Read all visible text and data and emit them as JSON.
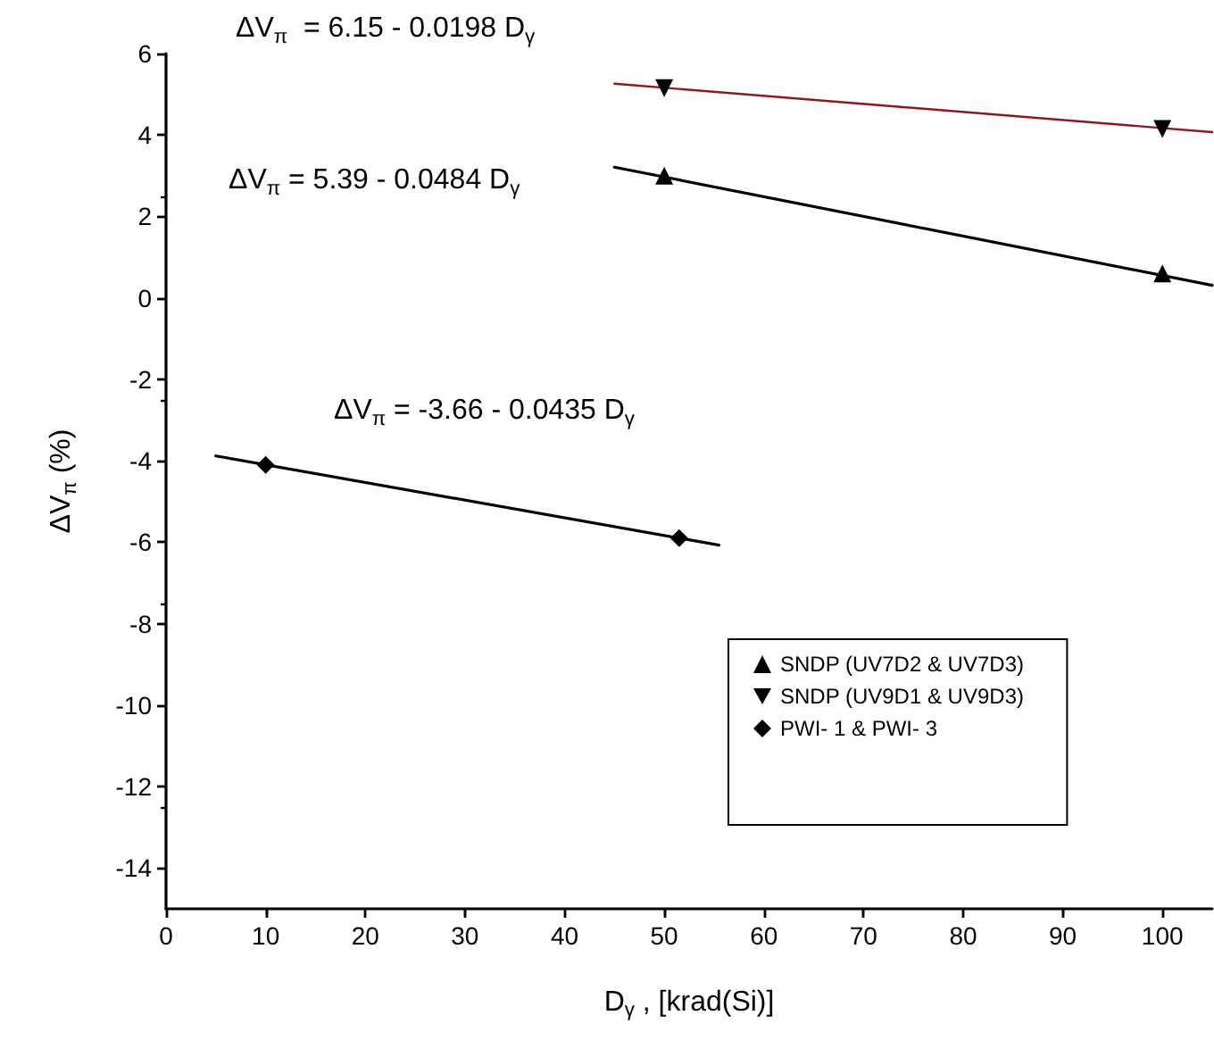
{
  "chart_data": {
    "type": "scatter",
    "xlabel": "D$_{γ}$ , [krad(Si)]",
    "ylabel": "ΔV$_{π}$ (%)",
    "annotations": [
      "ΔV$_{π}$  = 6.15 - 0.0198 D$_{γ}$",
      "ΔV$_{π}$ = 5.39 - 0.0484 D$_{γ}$",
      "ΔV$_{π}$ = -3.66 - 0.0435 D$_{γ}$"
    ],
    "xlim": [
      0,
      105
    ],
    "xticks": [
      0,
      10,
      20,
      30,
      40,
      50,
      60,
      70,
      80,
      90,
      100
    ],
    "ylim": [
      -15,
      6
    ],
    "yticks": [
      -14,
      -12,
      -10,
      -8,
      -6,
      -4,
      -2,
      0,
      2,
      4,
      6
    ],
    "grid": false,
    "legend": "bottom right",
    "series": [
      {
        "name": "SNDP (UV7D2 & UV7D3)",
        "marker": "triangle",
        "color": "#000000",
        "x": [
          50,
          100
        ],
        "values": [
          3.0,
          0.6
        ]
      },
      {
        "name": "SNDP (UV9D1 & UV9D3)",
        "marker": "triangle-down",
        "color": "#000000",
        "x": [
          50,
          100
        ],
        "values": [
          5.15,
          4.15
        ]
      },
      {
        "name": "PWI- 1 & PWI- 3",
        "marker": "diamond",
        "color": "#000000",
        "x": [
          10,
          51.5
        ],
        "values": [
          -4.1,
          -5.9
        ]
      },
      {
        "type": "line",
        "marker": "none",
        "color": "#000000",
        "x": [
          45,
          105
        ],
        "values": [
          3.21,
          0.31
        ]
      },
      {
        "type": "line",
        "marker": "none",
        "color": "#8b1a1a",
        "x": [
          45,
          105
        ],
        "values": [
          5.26,
          4.07
        ]
      },
      {
        "type": "line",
        "marker": "none",
        "color": "#000000",
        "x": [
          5,
          55.5
        ],
        "values": [
          -3.88,
          -6.07
        ]
      }
    ]
  }
}
